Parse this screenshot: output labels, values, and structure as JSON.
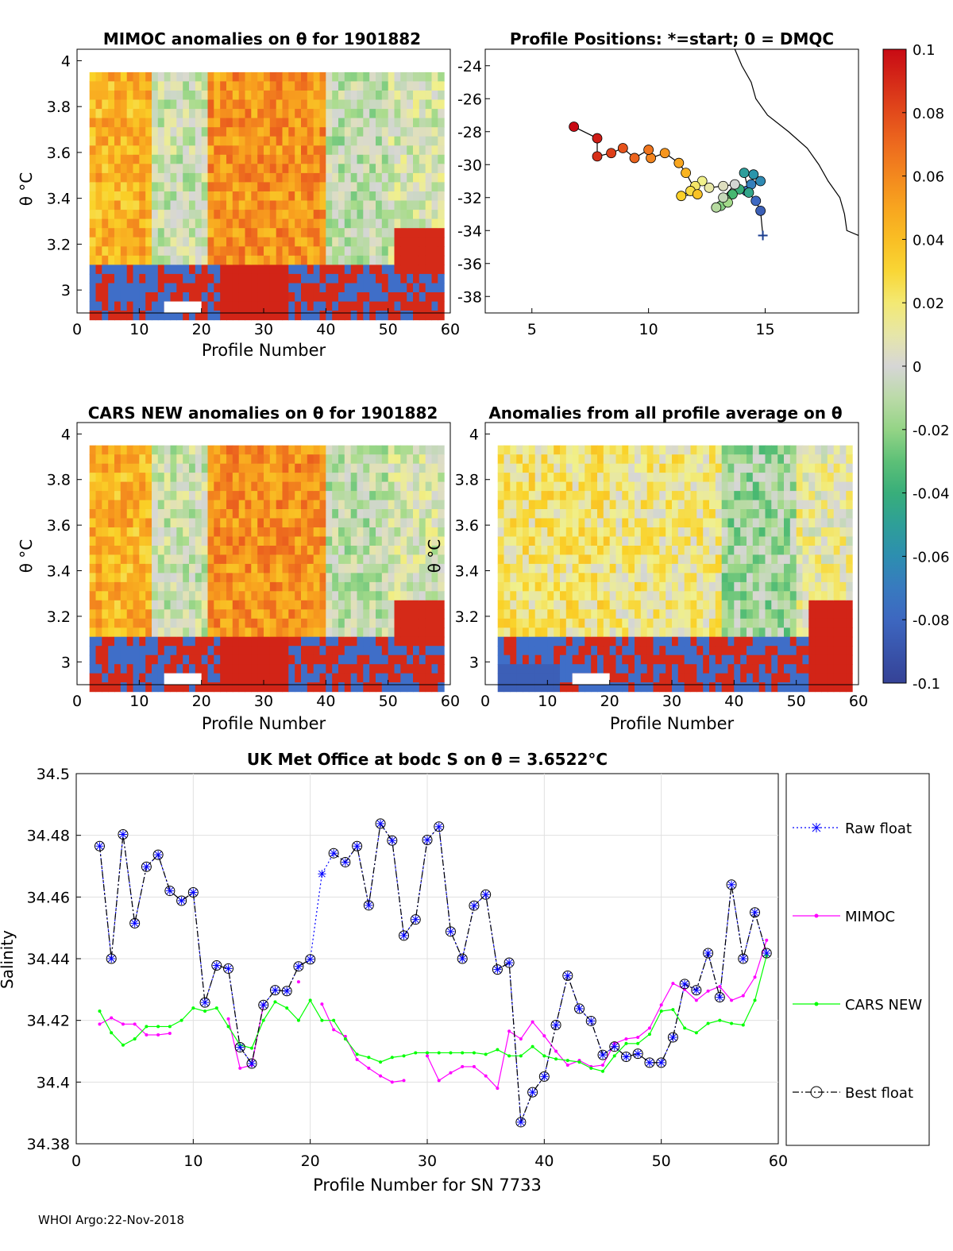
{
  "footer": "WHOI Argo:22-Nov-2018",
  "colorbar": {
    "min": -0.1,
    "max": 0.1,
    "ticks": [
      "0.1",
      "0.08",
      "0.06",
      "0.04",
      "0.02",
      "0",
      "-0.02",
      "-0.04",
      "-0.06",
      "-0.08",
      "-0.1"
    ]
  },
  "mimoc": {
    "title": "MIMOC anomalies on θ  for 1901882",
    "xlabel": "Profile Number",
    "ylabel": "θ °C",
    "xticks": [
      "0",
      "10",
      "20",
      "30",
      "40",
      "50",
      "60"
    ],
    "yticks": [
      "4",
      "3.8",
      "3.6",
      "3.4",
      "3.2",
      "3"
    ],
    "ylim": [
      2.9,
      4.05
    ]
  },
  "positions": {
    "title": "Profile Positions: *=start; 0 = DMQC",
    "xticks": [
      "5",
      "10",
      "15"
    ],
    "yticks": [
      "-24",
      "-26",
      "-28",
      "-30",
      "-32",
      "-34",
      "-36",
      "-38"
    ],
    "xlim": [
      3,
      19
    ],
    "ylim": [
      -39,
      -23
    ],
    "track": [
      [
        14.9,
        -34.3
      ],
      [
        14.8,
        -32.8
      ],
      [
        14.6,
        -32.2
      ],
      [
        14.2,
        -31.6
      ],
      [
        14.4,
        -31.2
      ],
      [
        14.8,
        -31.0
      ],
      [
        14.5,
        -30.6
      ],
      [
        14.1,
        -30.5
      ],
      [
        14.3,
        -31.7
      ],
      [
        13.9,
        -31.5
      ],
      [
        13.6,
        -31.8
      ],
      [
        13.3,
        -32.1
      ],
      [
        13.1,
        -32.5
      ],
      [
        13.4,
        -32.3
      ],
      [
        12.9,
        -32.6
      ],
      [
        13.2,
        -32.0
      ],
      [
        13.7,
        -31.2
      ],
      [
        13.2,
        -31.3
      ],
      [
        12.6,
        -31.4
      ],
      [
        12.3,
        -31.0
      ],
      [
        12.0,
        -31.3
      ],
      [
        11.8,
        -31.6
      ],
      [
        11.4,
        -31.9
      ],
      [
        12.1,
        -31.8
      ],
      [
        11.6,
        -30.5
      ],
      [
        11.3,
        -29.9
      ],
      [
        10.7,
        -29.3
      ],
      [
        10.1,
        -29.6
      ],
      [
        10.0,
        -29.1
      ],
      [
        9.4,
        -29.6
      ],
      [
        8.9,
        -29.0
      ],
      [
        8.4,
        -29.3
      ],
      [
        7.8,
        -29.5
      ],
      [
        7.8,
        -28.4
      ],
      [
        6.8,
        -27.7
      ]
    ],
    "coast": [
      [
        13.7,
        -23
      ],
      [
        14.0,
        -24
      ],
      [
        14.4,
        -25
      ],
      [
        14.6,
        -26
      ],
      [
        15.1,
        -27
      ],
      [
        16.0,
        -28
      ],
      [
        16.8,
        -29
      ],
      [
        17.3,
        -30
      ],
      [
        17.7,
        -31
      ],
      [
        18.2,
        -32
      ],
      [
        18.4,
        -33
      ],
      [
        18.5,
        -34
      ],
      [
        19.0,
        -34.3
      ]
    ]
  },
  "cars": {
    "title": "CARS NEW anomalies on θ for 1901882",
    "xlabel": "Profile Number",
    "ylabel": "θ °C",
    "xticks": [
      "0",
      "10",
      "20",
      "30",
      "40",
      "50",
      "60"
    ],
    "yticks": [
      "4",
      "3.8",
      "3.6",
      "3.4",
      "3.2",
      "3"
    ],
    "ylim": [
      2.9,
      4.05
    ]
  },
  "allavg": {
    "title": "Anomalies from all profile average on θ",
    "xlabel": "Profile Number",
    "ylabel": "θ °C",
    "xticks": [
      "0",
      "10",
      "20",
      "30",
      "40",
      "50",
      "60"
    ],
    "yticks": [
      "4",
      "3.8",
      "3.6",
      "3.4",
      "3.2",
      "3"
    ],
    "ylim": [
      2.9,
      4.05
    ]
  },
  "chart_data": {
    "type": "line",
    "title": "UK Met Office at bodc S on θ = 3.6522°C",
    "xlabel": "Profile Number for SN 7733",
    "ylabel": "Salinity",
    "xlim": [
      0,
      60
    ],
    "ylim": [
      34.38,
      34.5
    ],
    "xticks": [
      "0",
      "10",
      "20",
      "30",
      "40",
      "50",
      "60"
    ],
    "yticks": [
      "34.5",
      "34.48",
      "34.46",
      "34.44",
      "34.42",
      "34.4",
      "34.38"
    ],
    "x": [
      2,
      3,
      4,
      5,
      6,
      7,
      8,
      9,
      10,
      11,
      12,
      13,
      14,
      15,
      16,
      17,
      18,
      19,
      20,
      21,
      22,
      23,
      24,
      25,
      26,
      27,
      28,
      29,
      30,
      31,
      32,
      33,
      34,
      35,
      36,
      37,
      38,
      39,
      40,
      41,
      42,
      43,
      44,
      45,
      46,
      47,
      48,
      49,
      50,
      51,
      52,
      53,
      54,
      55,
      56,
      57,
      58,
      59
    ],
    "series": [
      {
        "name": "Raw float",
        "values": [
          34.4765,
          34.44,
          34.4803,
          34.4515,
          34.4698,
          34.4737,
          34.462,
          34.4588,
          34.4615,
          34.4258,
          34.4378,
          34.4368,
          34.4113,
          34.406,
          34.425,
          34.4298,
          34.4295,
          34.4375,
          34.4398,
          34.4675,
          34.4742,
          34.4713,
          34.4765,
          34.4573,
          34.4838,
          34.4783,
          34.4475,
          34.4527,
          34.4785,
          34.4828,
          34.4488,
          34.44,
          34.4572,
          34.4608,
          34.4365,
          34.4387,
          34.387,
          34.3967,
          34.4018,
          34.4185,
          34.4345,
          34.4238,
          34.4198,
          34.4088,
          34.4115,
          34.4082,
          34.4092,
          34.4063,
          34.4063,
          34.4145,
          34.4318,
          34.4298,
          34.4418,
          34.4275,
          34.464,
          34.44,
          34.455,
          34.4418
        ]
      },
      {
        "name": "MIMOC",
        "values": [
          34.4188,
          34.4208,
          34.4188,
          34.4188,
          34.4153,
          34.4153,
          34.4158,
          null,
          null,
          null,
          null,
          34.4205,
          34.4045,
          34.4055,
          34.425,
          null,
          null,
          34.4325,
          null,
          34.4253,
          34.417,
          34.4148,
          34.4073,
          34.4045,
          34.402,
          34.4,
          34.4005,
          null,
          34.4085,
          34.4005,
          34.403,
          34.405,
          34.405,
          34.402,
          34.398,
          34.4165,
          34.414,
          34.4195,
          34.415,
          34.41,
          34.4055,
          34.407,
          34.405,
          34.4055,
          34.4125,
          34.414,
          34.4145,
          34.4175,
          34.425,
          34.432,
          34.43,
          34.4265,
          34.4295,
          34.431,
          34.4265,
          34.428,
          34.434,
          34.446
        ]
      },
      {
        "name": "CARS NEW",
        "values": [
          34.423,
          34.416,
          34.412,
          34.414,
          34.418,
          34.418,
          34.418,
          34.42,
          34.424,
          34.423,
          34.424,
          34.418,
          34.412,
          34.411,
          34.42,
          34.426,
          34.424,
          34.42,
          34.4265,
          34.42,
          34.42,
          34.414,
          34.409,
          34.408,
          34.4065,
          34.408,
          34.4085,
          34.4095,
          34.4095,
          34.4095,
          34.4095,
          34.4095,
          34.4095,
          34.409,
          34.4105,
          34.4085,
          34.4085,
          34.4115,
          34.4085,
          34.4075,
          34.407,
          34.4065,
          34.4045,
          34.4035,
          34.4085,
          34.4125,
          34.4125,
          34.4155,
          34.423,
          34.4235,
          34.4175,
          34.416,
          34.419,
          34.42,
          34.419,
          34.4185,
          34.4265,
          34.441
        ]
      },
      {
        "name": "Best float",
        "values": [
          34.4765,
          34.44,
          34.4803,
          34.4515,
          34.4698,
          34.4737,
          34.462,
          34.4588,
          34.4615,
          34.4258,
          34.4378,
          34.4368,
          34.4113,
          34.406,
          34.425,
          34.4298,
          34.4295,
          34.4375,
          34.4398,
          null,
          34.4742,
          34.4713,
          34.4765,
          34.4573,
          34.4838,
          34.4783,
          34.4475,
          34.4527,
          34.4785,
          34.4828,
          34.4488,
          34.44,
          34.4572,
          34.4608,
          34.4365,
          34.4387,
          34.387,
          34.3967,
          34.4018,
          34.4185,
          34.4345,
          34.4238,
          34.4198,
          34.4088,
          34.4115,
          34.4082,
          34.4092,
          34.4063,
          34.4063,
          34.4145,
          34.4318,
          34.4298,
          34.4418,
          34.4275,
          34.464,
          34.44,
          34.455,
          34.4418
        ]
      }
    ],
    "legend": [
      "Raw float",
      "MIMOC",
      "CARS NEW",
      "Best float"
    ],
    "colors": {
      "raw": "#0000ff",
      "mimoc": "#ff00ff",
      "cars": "#00ff00",
      "best": "#000000"
    }
  }
}
